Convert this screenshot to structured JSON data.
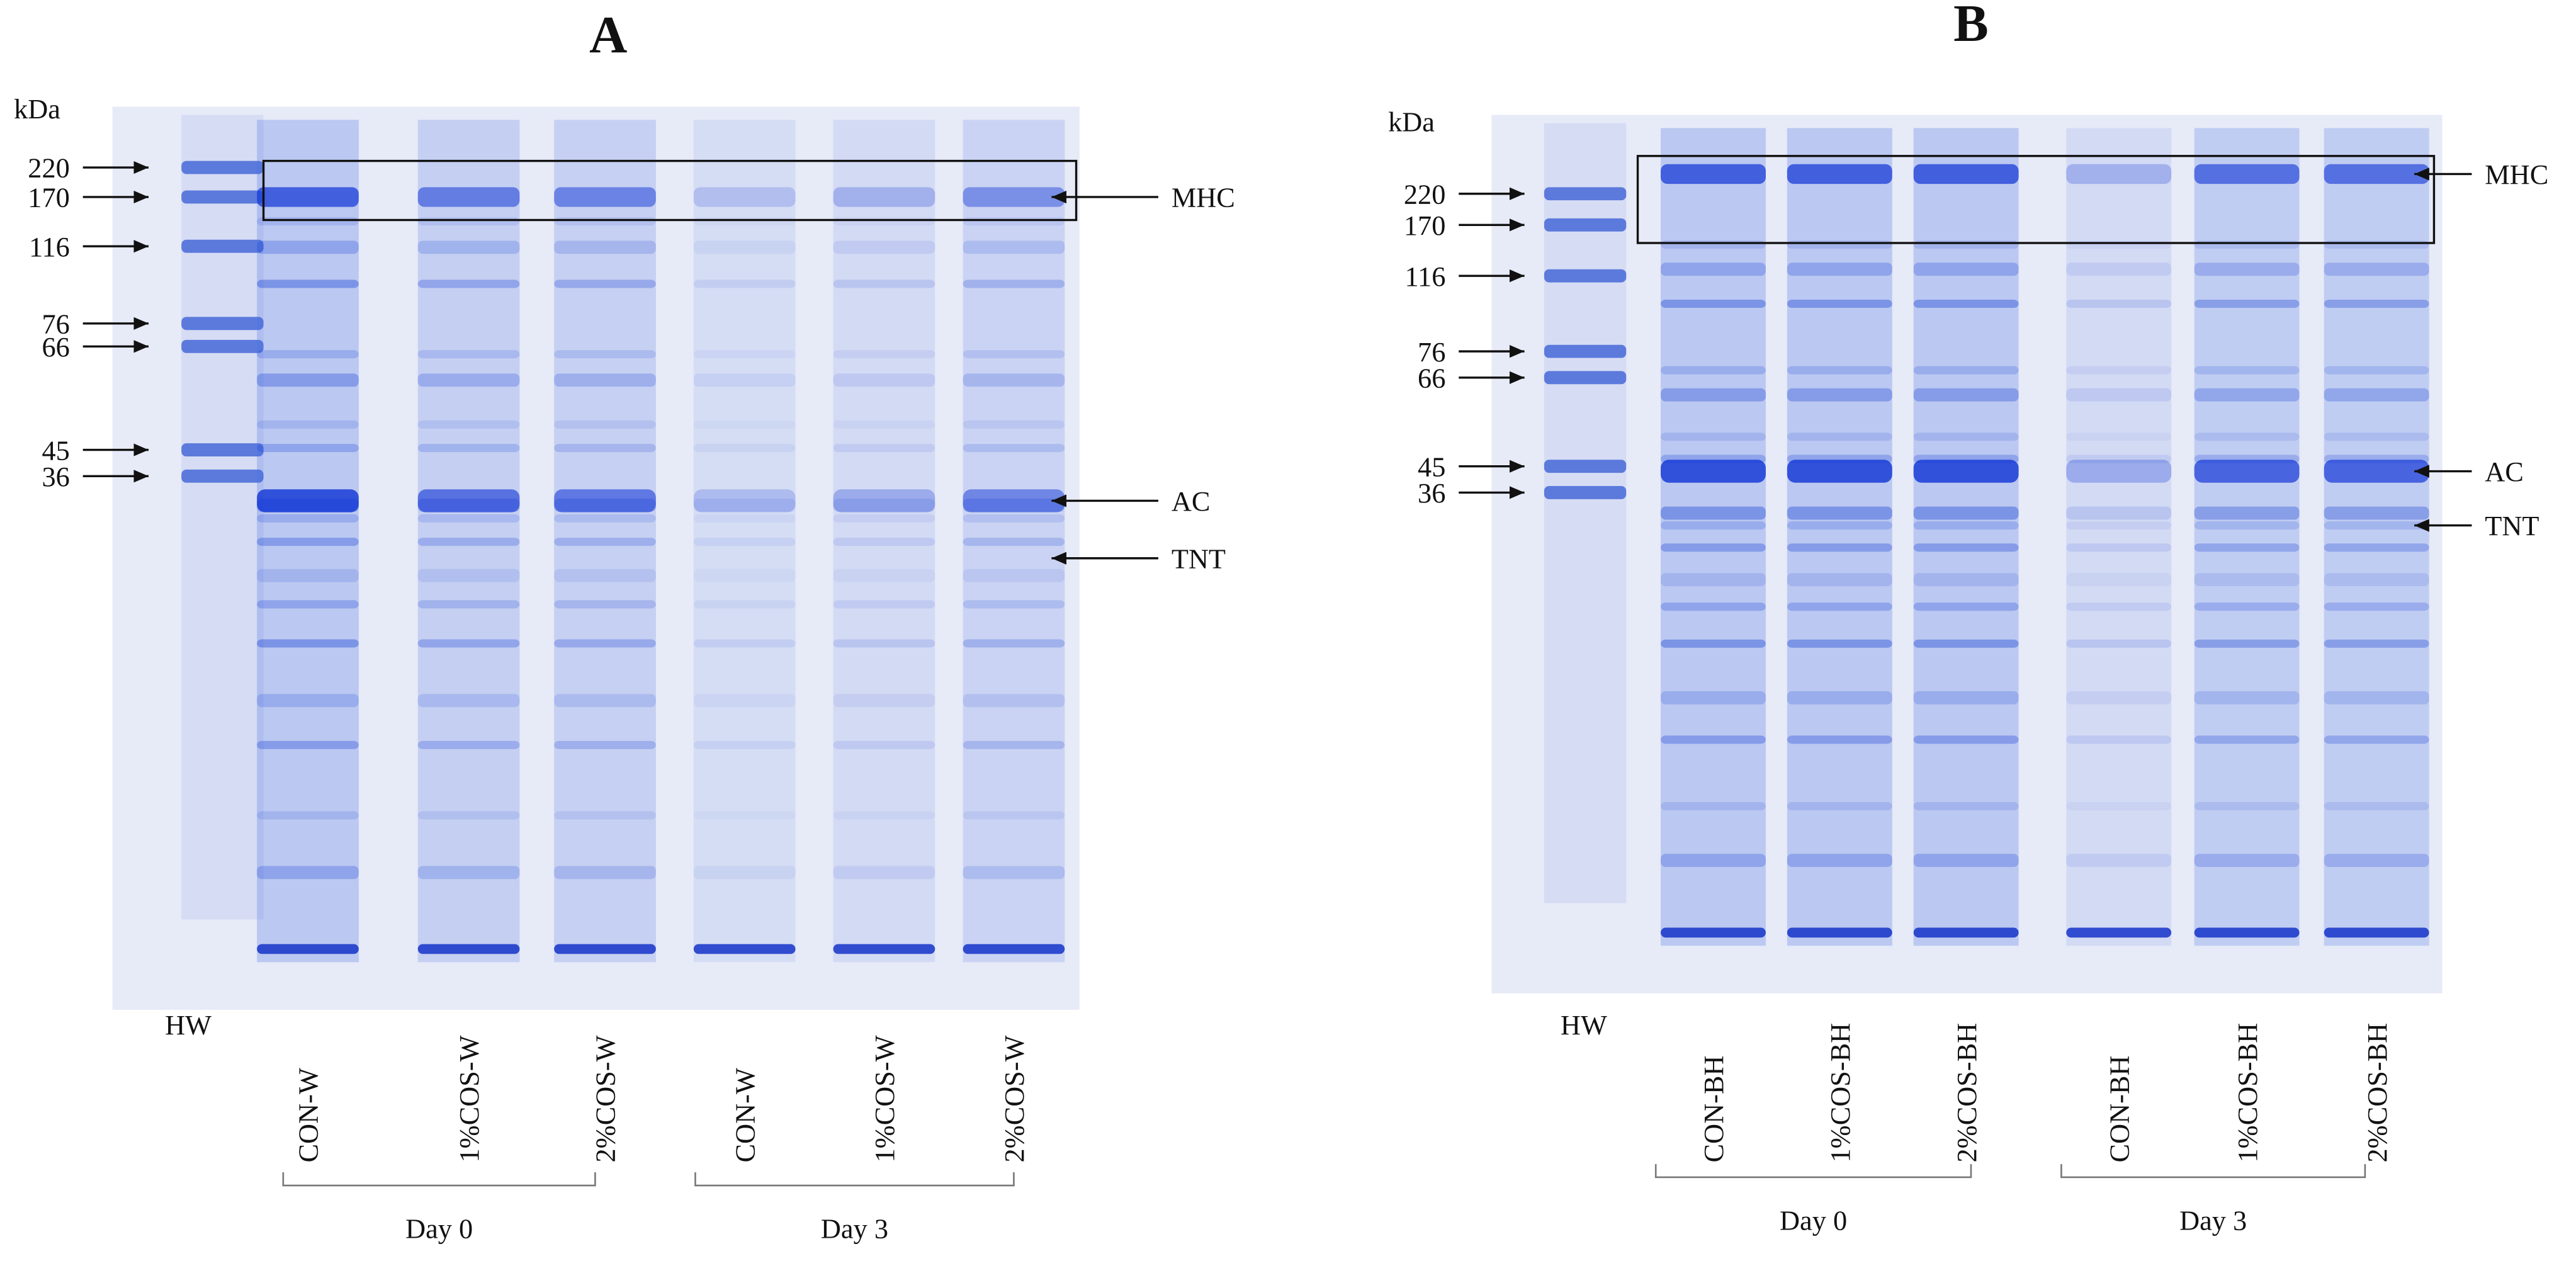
{
  "panels": [
    {
      "title": "A",
      "unit": "kDa",
      "markers": [
        220,
        170,
        116,
        76,
        66,
        45,
        36
      ],
      "ladder_label": "HW",
      "lanes": [
        "CON-W",
        "1%COS-W",
        "2%COS-W",
        "CON-W",
        "1%COS-W",
        "2%COS-W"
      ],
      "groups": [
        "Day 0",
        "Day 3"
      ],
      "bands": [
        "MHC",
        "AC",
        "TNT"
      ]
    },
    {
      "title": "B",
      "unit": "kDa",
      "markers": [
        220,
        170,
        116,
        76,
        66,
        45,
        36
      ],
      "ladder_label": "HW",
      "lanes": [
        "CON-BH",
        "1%COS-BH",
        "2%COS-BH",
        "CON-BH",
        "1%COS-BH",
        "2%COS-BH"
      ],
      "groups": [
        "Day 0",
        "Day 3"
      ],
      "bands": [
        "MHC",
        "AC",
        "TNT"
      ]
    }
  ]
}
